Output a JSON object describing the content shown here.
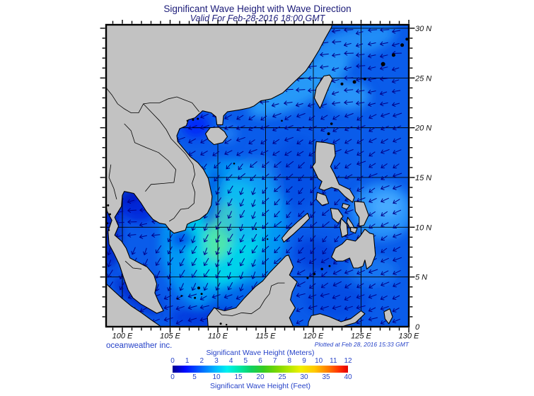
{
  "header": {
    "title": "Significant Wave Height with Wave Direction",
    "subtitle": "Valid For Feb-28-2016 18:00 GMT"
  },
  "footer": {
    "left": "oceanweather inc.",
    "right": "Plotted at Feb 28, 2016 15:33 GMT"
  },
  "axes": {
    "lon_ticks": [
      {
        "label": "100 E",
        "value": 100
      },
      {
        "label": "105 E",
        "value": 105
      },
      {
        "label": "110 E",
        "value": 110
      },
      {
        "label": "115 E",
        "value": 115
      },
      {
        "label": "120 E",
        "value": 120
      },
      {
        "label": "125 E",
        "value": 125
      },
      {
        "label": "130 E",
        "value": 130
      }
    ],
    "lat_ticks": [
      {
        "label": "30 N",
        "value": 30
      },
      {
        "label": "25 N",
        "value": 25
      },
      {
        "label": "20 N",
        "value": 20
      },
      {
        "label": "15 N",
        "value": 15
      },
      {
        "label": "10 N",
        "value": 10
      },
      {
        "label": "5 N",
        "value": 5
      },
      {
        "label": "0",
        "value": 0
      }
    ],
    "lon_range": [
      98.296,
      130
    ],
    "lat_range": [
      0,
      30.35
    ]
  },
  "colorbar": {
    "meters_label": "Significant Wave Height (Meters)",
    "feet_label": "Significant Wave Height (Feet)",
    "meters_ticks": [
      "0",
      "1",
      "2",
      "3",
      "4",
      "5",
      "6",
      "7",
      "8",
      "9",
      "10",
      "11",
      "12"
    ],
    "feet_ticks": [
      "0",
      "5",
      "10",
      "15",
      "20",
      "25",
      "30",
      "35",
      "40"
    ],
    "gradient": [
      [
        "#000092",
        0
      ],
      [
        "#0008ff",
        7
      ],
      [
        "#0064ff",
        16
      ],
      [
        "#00b4ff",
        24
      ],
      [
        "#00f0f0",
        31
      ],
      [
        "#00e8a8",
        38
      ],
      [
        "#10d060",
        45
      ],
      [
        "#38cc20",
        52
      ],
      [
        "#7fd800",
        60
      ],
      [
        "#b8e800",
        67
      ],
      [
        "#f0f000",
        73
      ],
      [
        "#ffc800",
        81
      ],
      [
        "#ff7800",
        89
      ],
      [
        "#ff3000",
        95
      ],
      [
        "#e60000",
        100
      ]
    ]
  },
  "colors": {
    "land": "#c2c2c2",
    "coast": "#000000",
    "sea_base": "#0a5cea",
    "grid": "#000000",
    "arrows": "#000088",
    "caption_blue": "#2743c8",
    "title_blue": "#1b1b78",
    "axis_text": "#111111"
  },
  "arrows": {
    "spacing": 17,
    "length": 11.5
  }
}
